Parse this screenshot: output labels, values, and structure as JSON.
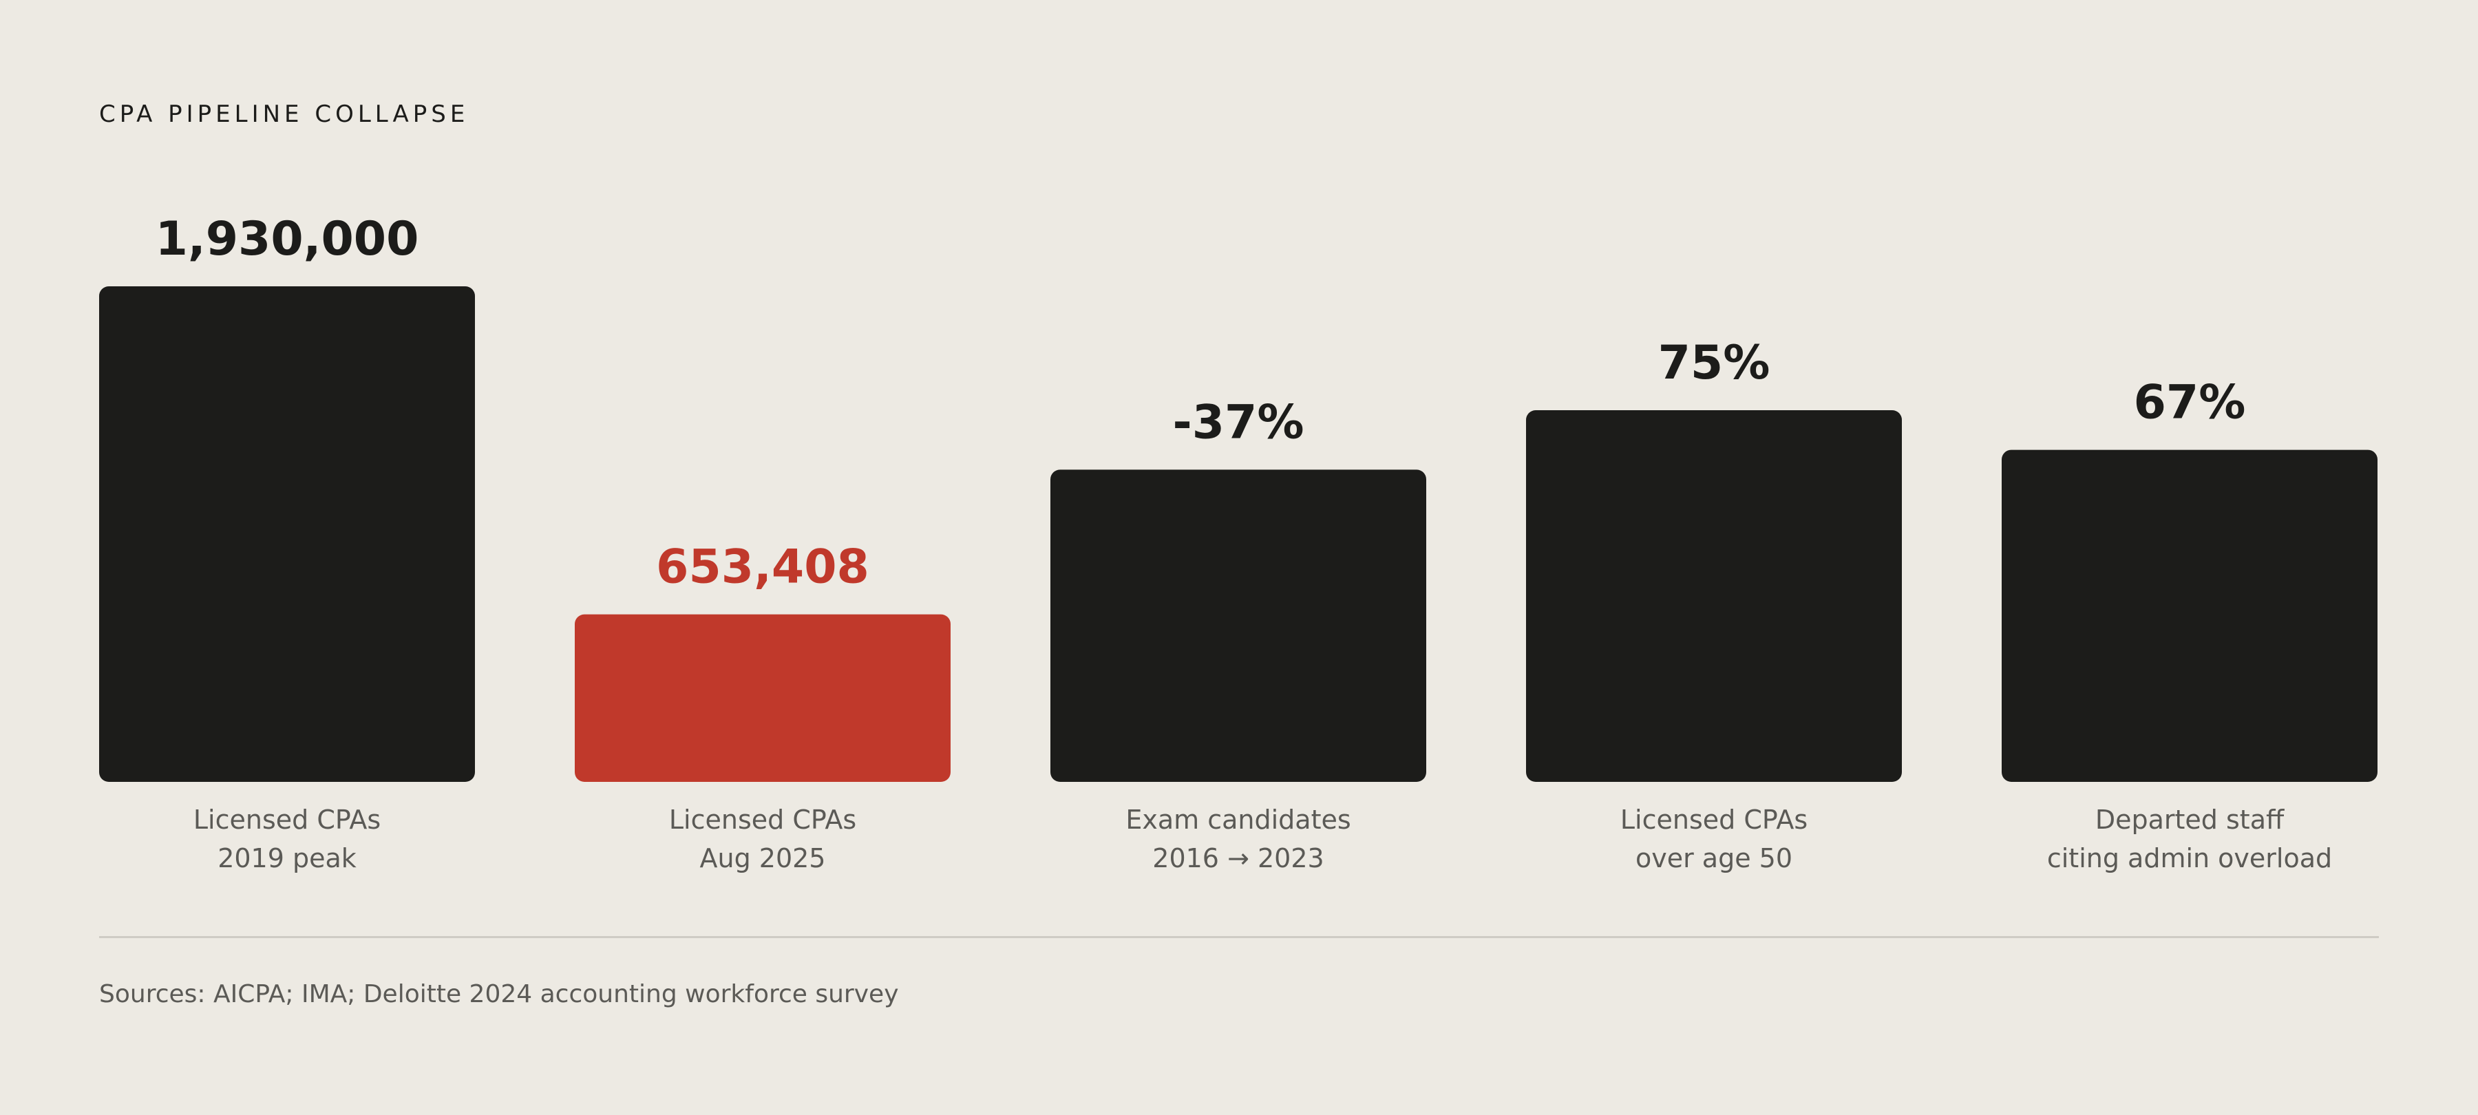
{
  "title": "CPA PIPELINE COLLAPSE",
  "sources": "Sources: AICPA; IMA; Deloitte 2024 accounting workforce survey",
  "colors": {
    "background": "#EDEAE3",
    "bar_default": "#1C1C1A",
    "bar_highlight": "#C0392B",
    "label_default": "#1C1C1A",
    "label_highlight": "#C0392B",
    "category_text": "#5B5A56",
    "divider": "#CFCCC5"
  },
  "chart_data": {
    "type": "bar",
    "bars": [
      {
        "value_label": "1,930,000",
        "category": [
          "Licensed CPAs",
          "2019 peak"
        ],
        "relative_height": 1.0,
        "highlight": false
      },
      {
        "value_label": "653,408",
        "category": [
          "Licensed CPAs",
          "Aug 2025"
        ],
        "relative_height": 0.338,
        "highlight": true
      },
      {
        "value_label": "-37%",
        "category": [
          "Exam candidates",
          "2016 → 2023"
        ],
        "relative_height": 0.63,
        "highlight": false
      },
      {
        "value_label": "75%",
        "category": [
          "Licensed CPAs",
          "over age 50"
        ],
        "relative_height": 0.75,
        "highlight": false
      },
      {
        "value_label": "67%",
        "category": [
          "Departed staff",
          "citing admin overload"
        ],
        "relative_height": 0.67,
        "highlight": false
      }
    ],
    "grid": false,
    "legend": "none"
  }
}
